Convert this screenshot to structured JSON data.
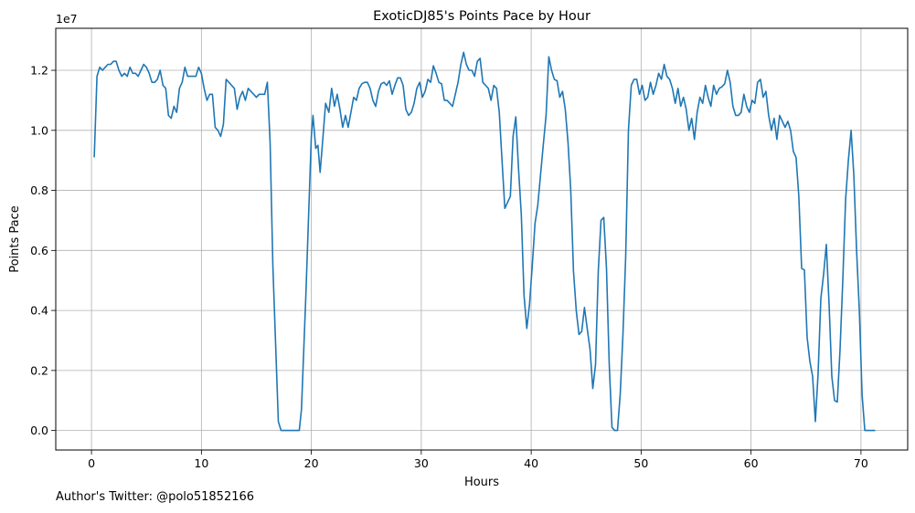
{
  "chart_data": {
    "type": "line",
    "title": "ExoticDJ85's Points Pace by Hour",
    "xlabel": "Hours",
    "ylabel": "Points Pace",
    "y_offset_label": "1e7",
    "xlim": [
      -3.25,
      74.25
    ],
    "ylim": [
      -0.065,
      1.34
    ],
    "x_ticks": [
      0,
      10,
      20,
      30,
      40,
      50,
      60,
      70
    ],
    "x_tick_labels": [
      "0",
      "10",
      "20",
      "30",
      "40",
      "50",
      "60",
      "70"
    ],
    "y_ticks": [
      0,
      0.2,
      0.4,
      0.6,
      0.8,
      1.0,
      1.2
    ],
    "y_tick_labels": [
      "0.0",
      "0.2",
      "0.4",
      "0.6",
      "0.8",
      "1.0",
      "1.2"
    ],
    "grid": true,
    "color": "#1f77b4",
    "series": [
      {
        "name": "",
        "points": [
          [
            0.25,
            0.91
          ],
          [
            0.5,
            1.18
          ],
          [
            0.75,
            1.21
          ],
          [
            1.0,
            1.2
          ],
          [
            1.25,
            1.21
          ],
          [
            1.5,
            1.22
          ],
          [
            1.75,
            1.22
          ],
          [
            2.0,
            1.23
          ],
          [
            2.25,
            1.23
          ],
          [
            2.5,
            1.2
          ],
          [
            2.75,
            1.18
          ],
          [
            3.0,
            1.19
          ],
          [
            3.25,
            1.18
          ],
          [
            3.5,
            1.21
          ],
          [
            3.75,
            1.19
          ],
          [
            4.0,
            1.19
          ],
          [
            4.25,
            1.18
          ],
          [
            4.5,
            1.2
          ],
          [
            4.75,
            1.22
          ],
          [
            5.0,
            1.21
          ],
          [
            5.25,
            1.19
          ],
          [
            5.5,
            1.16
          ],
          [
            5.75,
            1.16
          ],
          [
            6.0,
            1.17
          ],
          [
            6.25,
            1.2
          ],
          [
            6.5,
            1.15
          ],
          [
            6.75,
            1.14
          ],
          [
            7.0,
            1.05
          ],
          [
            7.25,
            1.04
          ],
          [
            7.5,
            1.08
          ],
          [
            7.75,
            1.06
          ],
          [
            8.0,
            1.14
          ],
          [
            8.25,
            1.16
          ],
          [
            8.5,
            1.21
          ],
          [
            8.75,
            1.18
          ],
          [
            9.0,
            1.18
          ],
          [
            9.25,
            1.18
          ],
          [
            9.5,
            1.18
          ],
          [
            9.75,
            1.21
          ],
          [
            10.0,
            1.19
          ],
          [
            10.25,
            1.14
          ],
          [
            10.5,
            1.1
          ],
          [
            10.75,
            1.12
          ],
          [
            11.0,
            1.12
          ],
          [
            11.25,
            1.01
          ],
          [
            11.5,
            1.0
          ],
          [
            11.75,
            0.98
          ],
          [
            12.0,
            1.02
          ],
          [
            12.25,
            1.17
          ],
          [
            12.5,
            1.16
          ],
          [
            12.75,
            1.15
          ],
          [
            13.0,
            1.14
          ],
          [
            13.25,
            1.07
          ],
          [
            13.5,
            1.11
          ],
          [
            13.75,
            1.13
          ],
          [
            14.0,
            1.1
          ],
          [
            14.25,
            1.14
          ],
          [
            14.5,
            1.13
          ],
          [
            14.75,
            1.12
          ],
          [
            15.0,
            1.11
          ],
          [
            15.25,
            1.12
          ],
          [
            15.5,
            1.12
          ],
          [
            15.75,
            1.12
          ],
          [
            16.0,
            1.16
          ],
          [
            16.25,
            0.96
          ],
          [
            16.5,
            0.55
          ],
          [
            17.0,
            0.03
          ],
          [
            17.25,
            0.0
          ],
          [
            18.0,
            0.0
          ],
          [
            18.9,
            0.0
          ],
          [
            19.1,
            0.07
          ],
          [
            19.5,
            0.45
          ],
          [
            20.0,
            0.98
          ],
          [
            20.15,
            1.05
          ],
          [
            20.4,
            0.94
          ],
          [
            20.6,
            0.95
          ],
          [
            20.8,
            0.86
          ],
          [
            21.0,
            0.95
          ],
          [
            21.3,
            1.09
          ],
          [
            21.6,
            1.06
          ],
          [
            21.85,
            1.14
          ],
          [
            22.1,
            1.08
          ],
          [
            22.35,
            1.12
          ],
          [
            22.6,
            1.07
          ],
          [
            22.85,
            1.01
          ],
          [
            23.1,
            1.05
          ],
          [
            23.35,
            1.01
          ],
          [
            23.6,
            1.06
          ],
          [
            23.85,
            1.11
          ],
          [
            24.1,
            1.1
          ],
          [
            24.35,
            1.14
          ],
          [
            24.6,
            1.155
          ],
          [
            24.85,
            1.16
          ],
          [
            25.1,
            1.16
          ],
          [
            25.35,
            1.14
          ],
          [
            25.6,
            1.1
          ],
          [
            25.85,
            1.08
          ],
          [
            26.1,
            1.13
          ],
          [
            26.35,
            1.155
          ],
          [
            26.6,
            1.16
          ],
          [
            26.85,
            1.15
          ],
          [
            27.1,
            1.165
          ],
          [
            27.35,
            1.12
          ],
          [
            27.6,
            1.15
          ],
          [
            27.85,
            1.175
          ],
          [
            28.1,
            1.175
          ],
          [
            28.35,
            1.15
          ],
          [
            28.6,
            1.07
          ],
          [
            28.85,
            1.05
          ],
          [
            29.1,
            1.06
          ],
          [
            29.35,
            1.09
          ],
          [
            29.6,
            1.14
          ],
          [
            29.85,
            1.16
          ],
          [
            30.1,
            1.11
          ],
          [
            30.35,
            1.13
          ],
          [
            30.6,
            1.17
          ],
          [
            30.85,
            1.16
          ],
          [
            31.1,
            1.215
          ],
          [
            31.35,
            1.19
          ],
          [
            31.6,
            1.16
          ],
          [
            31.85,
            1.155
          ],
          [
            32.1,
            1.1
          ],
          [
            32.35,
            1.1
          ],
          [
            32.6,
            1.09
          ],
          [
            32.85,
            1.08
          ],
          [
            33.1,
            1.12
          ],
          [
            33.35,
            1.16
          ],
          [
            33.6,
            1.22
          ],
          [
            33.85,
            1.26
          ],
          [
            34.1,
            1.22
          ],
          [
            34.35,
            1.2
          ],
          [
            34.6,
            1.2
          ],
          [
            34.85,
            1.18
          ],
          [
            35.1,
            1.23
          ],
          [
            35.35,
            1.24
          ],
          [
            35.6,
            1.16
          ],
          [
            35.85,
            1.15
          ],
          [
            36.1,
            1.14
          ],
          [
            36.35,
            1.1
          ],
          [
            36.6,
            1.15
          ],
          [
            36.85,
            1.14
          ],
          [
            37.1,
            1.06
          ],
          [
            37.35,
            0.9
          ],
          [
            37.6,
            0.74
          ],
          [
            37.85,
            0.76
          ],
          [
            38.1,
            0.78
          ],
          [
            38.35,
            0.98
          ],
          [
            38.6,
            1.045
          ],
          [
            38.85,
            0.87
          ],
          [
            39.1,
            0.72
          ],
          [
            39.35,
            0.45
          ],
          [
            39.6,
            0.34
          ],
          [
            39.85,
            0.42
          ],
          [
            40.1,
            0.55
          ],
          [
            40.35,
            0.69
          ],
          [
            40.6,
            0.75
          ],
          [
            40.85,
            0.85
          ],
          [
            41.1,
            0.95
          ],
          [
            41.35,
            1.05
          ],
          [
            41.6,
            1.245
          ],
          [
            41.85,
            1.2
          ],
          [
            42.1,
            1.17
          ],
          [
            42.35,
            1.165
          ],
          [
            42.6,
            1.11
          ],
          [
            42.85,
            1.13
          ],
          [
            43.1,
            1.07
          ],
          [
            43.35,
            0.96
          ],
          [
            43.6,
            0.8
          ],
          [
            43.85,
            0.53
          ],
          [
            44.1,
            0.4
          ],
          [
            44.35,
            0.32
          ],
          [
            44.6,
            0.33
          ],
          [
            44.85,
            0.41
          ],
          [
            45.1,
            0.34
          ],
          [
            45.35,
            0.27
          ],
          [
            45.6,
            0.14
          ],
          [
            45.85,
            0.22
          ],
          [
            46.1,
            0.53
          ],
          [
            46.35,
            0.7
          ],
          [
            46.6,
            0.71
          ],
          [
            46.85,
            0.54
          ],
          [
            47.1,
            0.22
          ],
          [
            47.35,
            0.01
          ],
          [
            47.6,
            0.0
          ],
          [
            47.85,
            0.0
          ],
          [
            48.1,
            0.12
          ],
          [
            48.35,
            0.32
          ],
          [
            48.6,
            0.58
          ],
          [
            48.85,
            1.0
          ],
          [
            49.1,
            1.15
          ],
          [
            49.35,
            1.17
          ],
          [
            49.6,
            1.17
          ],
          [
            49.85,
            1.12
          ],
          [
            50.1,
            1.15
          ],
          [
            50.35,
            1.1
          ],
          [
            50.6,
            1.11
          ],
          [
            50.85,
            1.16
          ],
          [
            51.1,
            1.12
          ],
          [
            51.35,
            1.15
          ],
          [
            51.6,
            1.19
          ],
          [
            51.85,
            1.17
          ],
          [
            52.1,
            1.22
          ],
          [
            52.35,
            1.18
          ],
          [
            52.6,
            1.17
          ],
          [
            52.85,
            1.14
          ],
          [
            53.1,
            1.09
          ],
          [
            53.35,
            1.14
          ],
          [
            53.6,
            1.08
          ],
          [
            53.85,
            1.11
          ],
          [
            54.1,
            1.07
          ],
          [
            54.35,
            1.0
          ],
          [
            54.6,
            1.04
          ],
          [
            54.85,
            0.97
          ],
          [
            55.1,
            1.06
          ],
          [
            55.35,
            1.11
          ],
          [
            55.6,
            1.09
          ],
          [
            55.85,
            1.15
          ],
          [
            56.1,
            1.11
          ],
          [
            56.35,
            1.08
          ],
          [
            56.6,
            1.15
          ],
          [
            56.85,
            1.12
          ],
          [
            57.1,
            1.14
          ],
          [
            57.35,
            1.145
          ],
          [
            57.6,
            1.155
          ],
          [
            57.85,
            1.2
          ],
          [
            58.1,
            1.16
          ],
          [
            58.35,
            1.08
          ],
          [
            58.6,
            1.05
          ],
          [
            58.85,
            1.05
          ],
          [
            59.1,
            1.06
          ],
          [
            59.35,
            1.12
          ],
          [
            59.6,
            1.08
          ],
          [
            59.85,
            1.06
          ],
          [
            60.1,
            1.1
          ],
          [
            60.35,
            1.09
          ],
          [
            60.6,
            1.16
          ],
          [
            60.85,
            1.17
          ],
          [
            61.1,
            1.11
          ],
          [
            61.35,
            1.13
          ],
          [
            61.6,
            1.05
          ],
          [
            61.85,
            1.0
          ],
          [
            62.1,
            1.04
          ],
          [
            62.35,
            0.97
          ],
          [
            62.6,
            1.05
          ],
          [
            62.85,
            1.03
          ],
          [
            63.1,
            1.01
          ],
          [
            63.35,
            1.03
          ],
          [
            63.6,
            1.0
          ],
          [
            63.85,
            0.93
          ],
          [
            64.1,
            0.91
          ],
          [
            64.35,
            0.78
          ],
          [
            64.6,
            0.54
          ],
          [
            64.85,
            0.535
          ],
          [
            65.1,
            0.31
          ],
          [
            65.35,
            0.23
          ],
          [
            65.6,
            0.18
          ],
          [
            65.85,
            0.03
          ],
          [
            66.1,
            0.19
          ],
          [
            66.35,
            0.44
          ],
          [
            66.6,
            0.52
          ],
          [
            66.85,
            0.62
          ],
          [
            67.1,
            0.42
          ],
          [
            67.35,
            0.18
          ],
          [
            67.6,
            0.1
          ],
          [
            67.85,
            0.095
          ],
          [
            68.1,
            0.27
          ],
          [
            68.35,
            0.5
          ],
          [
            68.6,
            0.77
          ],
          [
            68.85,
            0.9
          ],
          [
            69.1,
            1.0
          ],
          [
            69.35,
            0.85
          ],
          [
            69.6,
            0.6
          ],
          [
            69.85,
            0.4
          ],
          [
            70.1,
            0.12
          ],
          [
            70.35,
            0.0
          ],
          [
            70.6,
            0.0
          ],
          [
            71.0,
            0.0
          ],
          [
            71.3,
            0.0
          ]
        ]
      }
    ]
  },
  "footnote": "Author's Twitter: @polo51852166"
}
